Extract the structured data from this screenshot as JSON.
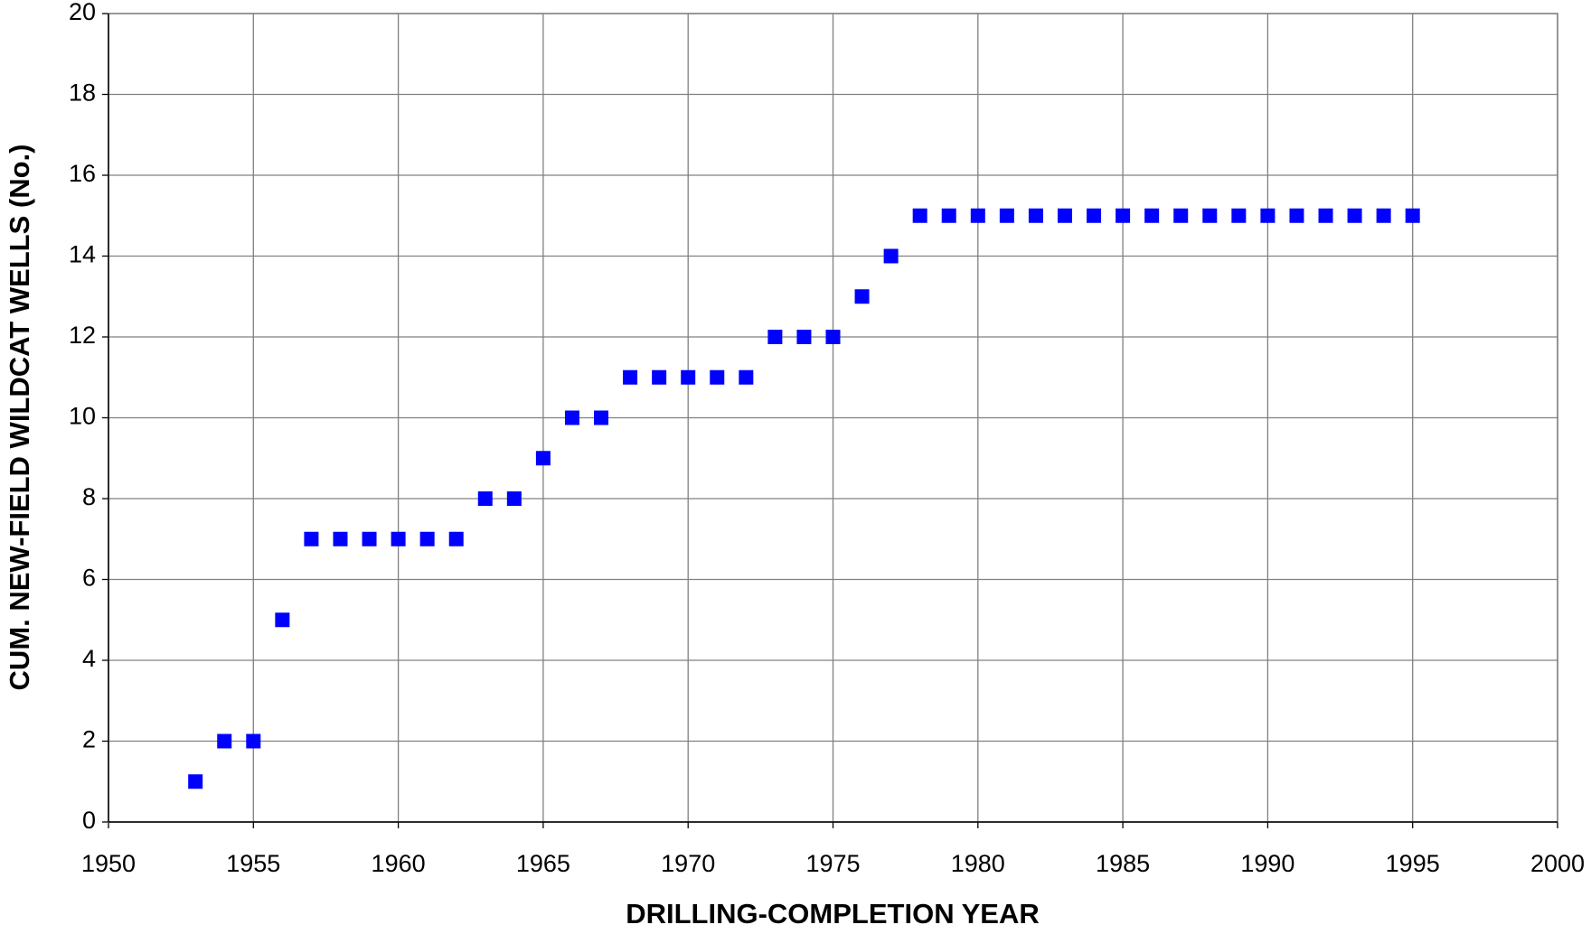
{
  "chart_data": {
    "type": "scatter",
    "xlabel": "DRILLING-COMPLETION YEAR",
    "ylabel": "CUM. NEW-FIELD WILDCAT WELLS (No.)",
    "x": [
      1953,
      1954,
      1955,
      1956,
      1957,
      1958,
      1959,
      1960,
      1961,
      1962,
      1963,
      1964,
      1965,
      1966,
      1967,
      1968,
      1969,
      1970,
      1971,
      1972,
      1973,
      1974,
      1975,
      1976,
      1977,
      1978,
      1979,
      1980,
      1981,
      1982,
      1983,
      1984,
      1985,
      1986,
      1987,
      1988,
      1989,
      1990,
      1991,
      1992,
      1993,
      1994,
      1995
    ],
    "values": [
      1,
      2,
      2,
      5,
      7,
      7,
      7,
      7,
      7,
      7,
      8,
      8,
      9,
      10,
      10,
      11,
      11,
      11,
      11,
      11,
      12,
      12,
      12,
      13,
      14,
      15,
      15,
      15,
      15,
      15,
      15,
      15,
      15,
      15,
      15,
      15,
      15,
      15,
      15,
      15,
      15,
      15,
      15
    ],
    "color": "#0000ff",
    "xlim": [
      1950,
      2000
    ],
    "xticks": [
      1950,
      1955,
      1960,
      1965,
      1970,
      1975,
      1980,
      1985,
      1990,
      1995,
      2000
    ],
    "ylim": [
      0,
      20
    ],
    "yticks": [
      0,
      2,
      4,
      6,
      8,
      10,
      12,
      14,
      16,
      18,
      20
    ],
    "grid": true
  }
}
